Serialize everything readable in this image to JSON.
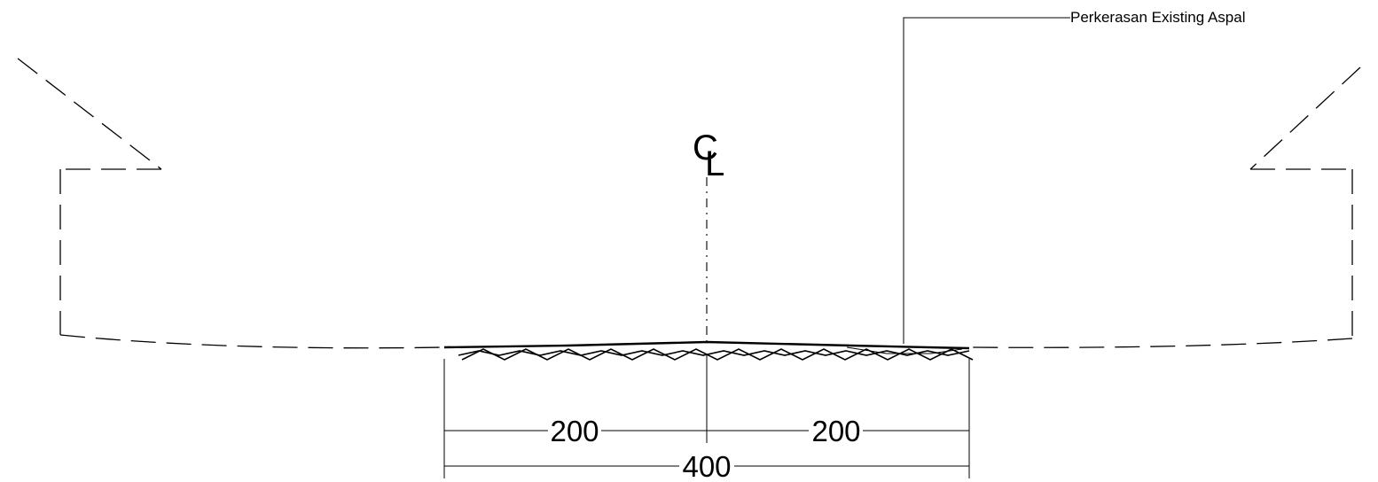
{
  "labels": {
    "centerline_c": "C",
    "centerline_l": "L",
    "pavement_note": "Perkerasan Existing Aspal"
  },
  "dimensions": {
    "left_half": "200",
    "right_half": "200",
    "total": "400"
  }
}
